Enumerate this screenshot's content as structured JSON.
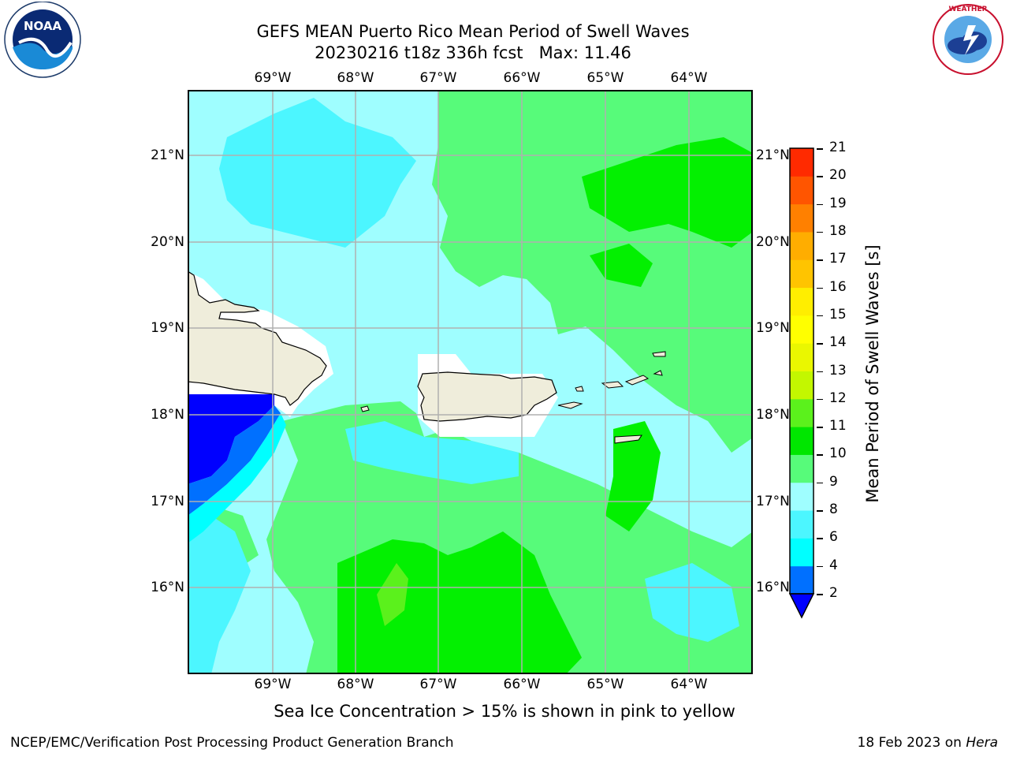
{
  "header": {
    "title_line1": "GEFS MEAN Puerto Rico Mean Period of Swell Waves",
    "title_line2": "20230216 t18z 336h fcst   Max: 11.46"
  },
  "logos": {
    "left": "NOAA",
    "left_ring": "NATIONAL OCEANIC AND ATMOSPHERIC ADMINISTRATION · U.S. DEPARTMENT OF COMMERCE",
    "right_ring": "NATIONAL WEATHER SERVICE"
  },
  "map": {
    "lon_labels": [
      "69°W",
      "68°W",
      "67°W",
      "66°W",
      "65°W",
      "64°W"
    ],
    "lat_labels": [
      "21°N",
      "20°N",
      "19°N",
      "18°N",
      "17°N",
      "16°N"
    ],
    "colors": {
      "land": "#efeddb",
      "lt_cyan": "#9ffeff",
      "cyan": "#4cf6ff",
      "green_lt": "#57fb7a",
      "green": "#03f001",
      "yellowgreen": "#5bf11c",
      "blue": "#0000ff",
      "blue2": "#0070ff"
    }
  },
  "colorbar": {
    "title": "Mean Period of Swell Waves [s]",
    "ticks": [
      "2",
      "4",
      "6",
      "8",
      "9",
      "10",
      "11",
      "12",
      "13",
      "14",
      "15",
      "16",
      "17",
      "18",
      "19",
      "20",
      "21"
    ],
    "colors": [
      "#0070ff",
      "#00ffff",
      "#4cf6ff",
      "#9ffeff",
      "#57fb7a",
      "#00e600",
      "#5bf11c",
      "#c3f700",
      "#eaf700",
      "#ffff00",
      "#ffee00",
      "#ffc400",
      "#ffad00",
      "#ff8000",
      "#ff5500",
      "#ff2a00"
    ],
    "under_color": "#0000ff"
  },
  "note": "Sea Ice Concentration > 15% is shown in pink to yellow",
  "footer": {
    "left": "NCEP/EMC/Verification Post Processing Product Generation Branch",
    "right_prefix": "18 Feb 2023 on ",
    "right_machine": "Hera"
  }
}
